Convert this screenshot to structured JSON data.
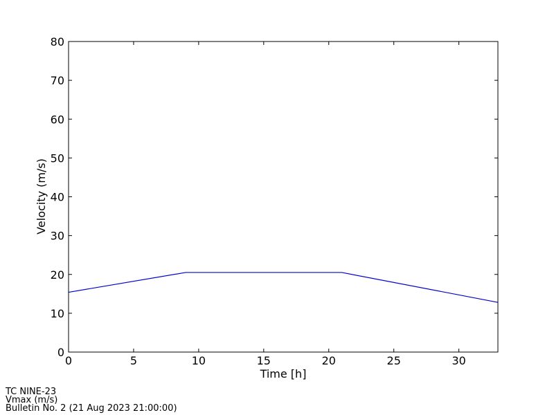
{
  "chart_data": {
    "type": "line",
    "x_label": "Time [h]",
    "y_label": "Velocity (m/s)",
    "x": [
      0,
      9,
      21,
      33
    ],
    "series": [
      {
        "name": "Vmax",
        "color": "#0000cc",
        "values": [
          15.4,
          20.5,
          20.5,
          12.8
        ]
      }
    ],
    "xlim": [
      0,
      33
    ],
    "xticks": [
      0,
      5,
      10,
      15,
      20,
      25,
      30
    ],
    "ylim": [
      0,
      80
    ],
    "yticks": [
      0,
      10,
      20,
      30,
      40,
      50,
      60,
      70,
      80
    ],
    "grid": false
  },
  "footer": [
    "TC NINE-23",
    "Vmax (m/s)",
    "Bulletin No. 2 (21 Aug 2023  21:00:00)"
  ]
}
